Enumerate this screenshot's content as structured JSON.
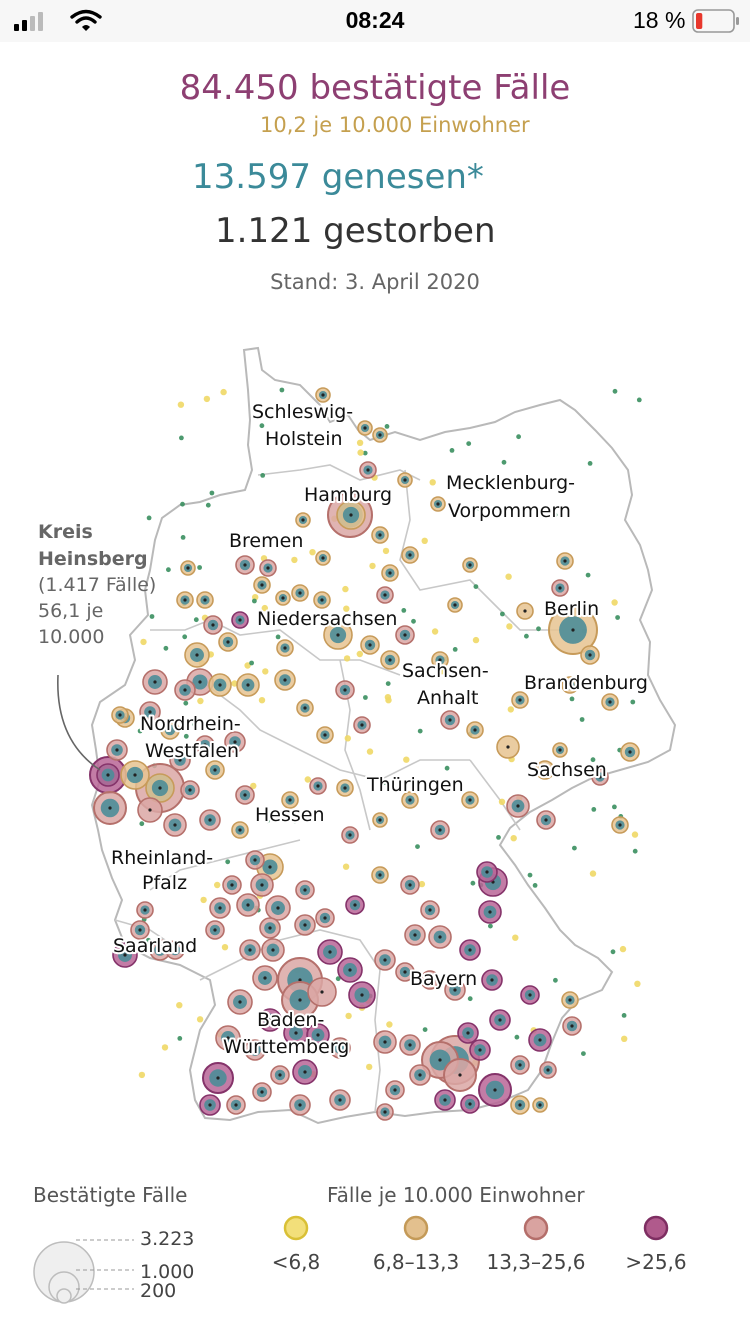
{
  "status_bar": {
    "time": "08:24",
    "battery_percent": "18 %",
    "battery_level": 0.18,
    "icons": [
      "cellular-signal-icon",
      "wifi-icon",
      "battery-icon"
    ]
  },
  "summary": {
    "confirmed": "84.450 bestätigte Fälle",
    "per_capita": "10,2  je 10.000 Einwohner",
    "recovered": "13.597 genesen*",
    "deaths": "1.121 gestorben",
    "date": "Stand: 3. April 2020"
  },
  "colors": {
    "confirmed": "#8d3f72",
    "per_capita": "#c5a04f",
    "recovered": "#3b8a99",
    "deaths": "#333333",
    "cat1": "#f2df7a",
    "cat2": "#e3c08e",
    "cat3": "#d9a3a0",
    "cat4": "#b05a8c"
  },
  "map": {
    "labels": {
      "sh1": "Schleswig-",
      "sh2": "Holstein",
      "hamburg": "Hamburg",
      "mv1": "Mecklenburg-",
      "mv2": "Vorpommern",
      "bremen": "Bremen",
      "berlin": "Berlin",
      "niedersachsen": "Niedersachsen",
      "sa1": "Sachsen-",
      "sa2": "Anhalt",
      "brandenburg": "Brandenburg",
      "nrw1": "Nordrhein-",
      "nrw2": "Westfalen",
      "sachsen": "Sachsen",
      "thueringen": "Thüringen",
      "hessen": "Hessen",
      "rp1": "Rheinland-",
      "rp2": "Pfalz",
      "saarland": "Saarland",
      "bayern": "Bayern",
      "bw1": "Baden-",
      "bw2": "Württemberg"
    },
    "callout": {
      "title1": "Kreis",
      "title2": "Heinsberg",
      "line1": "(1.417 Fälle)",
      "line2": "56,1 je",
      "line3": "10.000"
    }
  },
  "legend": {
    "size_title": "Bestätigte Fälle",
    "size_values": [
      "3.223",
      "1.000",
      "200"
    ],
    "rate_title": "Fälle je 10.000 Einwohner",
    "rate_categories": [
      "<6,8",
      "6,8–13,3",
      "13,3–25,6",
      ">25,6"
    ]
  }
}
